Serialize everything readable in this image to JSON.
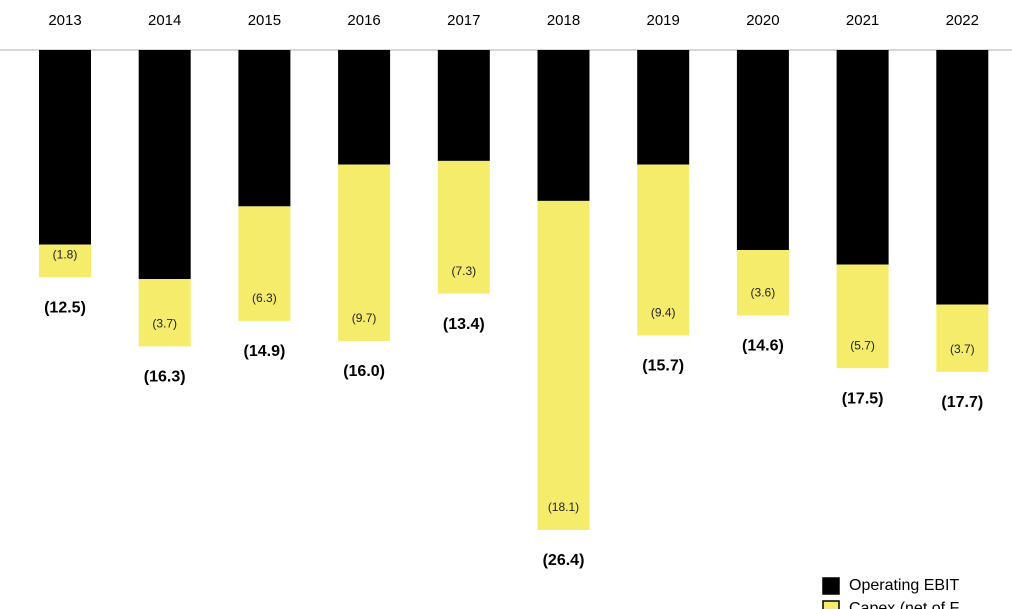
{
  "chart_data": {
    "type": "stacked_bar",
    "categories": [
      "2013",
      "2014",
      "2015",
      "2016",
      "2017",
      "2018",
      "2019",
      "2020",
      "2021",
      "2022"
    ],
    "series": [
      {
        "name": "Operating EBIT",
        "color": "#000000",
        "values": [
          -10.7,
          -12.6,
          -8.6,
          -6.3,
          -6.1,
          -8.3,
          -6.3,
          -11.0,
          -11.8,
          -14.0
        ]
      },
      {
        "name": "Capex (net of F",
        "color": "#f5ec6b",
        "values": [
          -1.8,
          -3.7,
          -6.3,
          -9.7,
          -7.3,
          -18.1,
          -9.4,
          -3.6,
          -5.7,
          -3.7
        ],
        "value_labels": [
          "(1.8)",
          "(3.7)",
          "(6.3)",
          "(9.7)",
          "(7.3)",
          "(18.1)",
          "(9.4)",
          "(3.6)",
          "(5.7)",
          "(3.7)"
        ]
      }
    ],
    "totals": {
      "values": [
        -12.5,
        -16.3,
        -14.9,
        -16.0,
        -13.4,
        -26.4,
        -15.7,
        -14.6,
        -17.5,
        -17.7
      ],
      "value_labels": [
        "(12.5)",
        "(16.3)",
        "(14.9)",
        "(16.0)",
        "(13.4)",
        "(26.4)",
        "(15.7)",
        "(14.6)",
        "(17.5)",
        "(17.7)"
      ]
    }
  }
}
